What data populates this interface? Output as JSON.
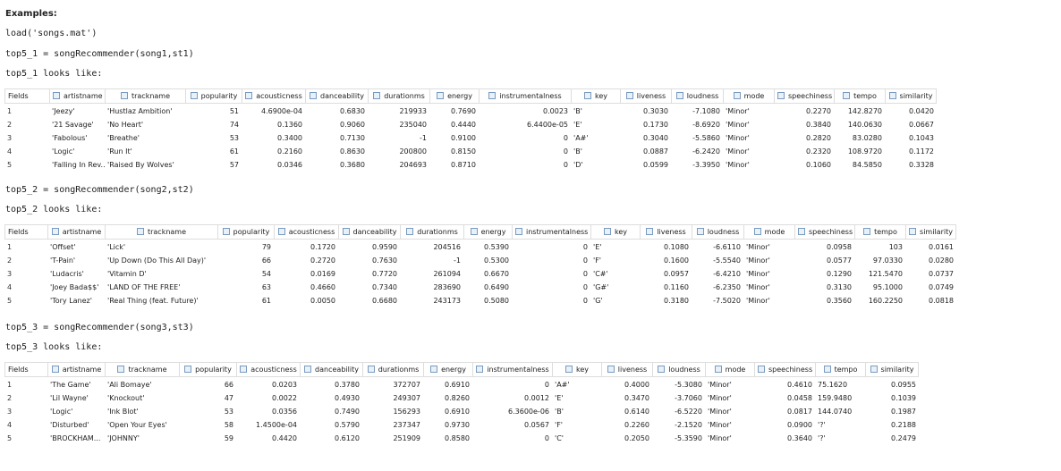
{
  "heading": "Examples:",
  "load_line": "load('songs.mat')",
  "blocks": [
    {
      "call": "top5_1 = songRecommender(song1,st1)",
      "caption": "top5_1 looks like:",
      "table": {
        "columns": [
          "Fields",
          "artistname",
          "trackname",
          "popularity",
          "acousticness",
          "danceability",
          "durationms",
          "energy",
          "instrumentalness",
          "key",
          "liveness",
          "loudness",
          "mode",
          "speechiness",
          "tempo",
          "similarity"
        ],
        "rows": [
          [
            "1",
            "'Jeezy'",
            "'Hustlaz Ambition'",
            "51",
            "4.6900e-04",
            "0.6830",
            "219933",
            "0.7690",
            "0.0023",
            "'B'",
            "0.3030",
            "-7.1080",
            "'Minor'",
            "0.2270",
            "142.8270",
            "0.0420"
          ],
          [
            "2",
            "'21 Savage'",
            "'No Heart'",
            "74",
            "0.1360",
            "0.9060",
            "235040",
            "0.4440",
            "6.4400e-05",
            "'E'",
            "0.1730",
            "-8.6920",
            "'Minor'",
            "0.3840",
            "140.0630",
            "0.0667"
          ],
          [
            "3",
            "'Fabolous'",
            "'Breathe'",
            "53",
            "0.3400",
            "0.7130",
            "-1",
            "0.9100",
            "0",
            "'A#'",
            "0.3040",
            "-5.5860",
            "'Minor'",
            "0.2820",
            "83.0280",
            "0.1043"
          ],
          [
            "4",
            "'Logic'",
            "'Run It'",
            "61",
            "0.2160",
            "0.8630",
            "200800",
            "0.8150",
            "0",
            "'B'",
            "0.0887",
            "-6.2420",
            "'Minor'",
            "0.2320",
            "108.9720",
            "0.1172"
          ],
          [
            "5",
            "'Falling In Rev...",
            "'Raised By Wolves'",
            "57",
            "0.0346",
            "0.3680",
            "204693",
            "0.8710",
            "0",
            "'D'",
            "0.0599",
            "-3.3950",
            "'Minor'",
            "0.1060",
            "84.5850",
            "0.3328"
          ]
        ]
      }
    },
    {
      "call": "top5_2 = songRecommender(song2,st2)",
      "caption": "top5_2 looks like:",
      "table": {
        "columns": [
          "Fields",
          "artistname",
          "trackname",
          "popularity",
          "acousticness",
          "danceability",
          "durationms",
          "energy",
          "instrumentalness",
          "key",
          "liveness",
          "loudness",
          "mode",
          "speechiness",
          "tempo",
          "similarity"
        ],
        "rows": [
          [
            "1",
            "'Offset'",
            "'Lick'",
            "79",
            "0.1720",
            "0.9590",
            "204516",
            "0.5390",
            "0",
            "'E'",
            "0.1080",
            "-6.6110",
            "'Minor'",
            "0.0958",
            "103",
            "0.0161"
          ],
          [
            "2",
            "'T-Pain'",
            "'Up Down (Do This All Day)'",
            "66",
            "0.2720",
            "0.7630",
            "-1",
            "0.5300",
            "0",
            "'F'",
            "0.1600",
            "-5.5540",
            "'Minor'",
            "0.0577",
            "97.0330",
            "0.0280"
          ],
          [
            "3",
            "'Ludacris'",
            "'Vitamin D'",
            "54",
            "0.0169",
            "0.7720",
            "261094",
            "0.6670",
            "0",
            "'C#'",
            "0.0957",
            "-6.4210",
            "'Minor'",
            "0.1290",
            "121.5470",
            "0.0737"
          ],
          [
            "4",
            "'Joey Bada$$'",
            "'LAND OF THE FREE'",
            "63",
            "0.4660",
            "0.7340",
            "283690",
            "0.6490",
            "0",
            "'G#'",
            "0.1160",
            "-6.2350",
            "'Minor'",
            "0.3130",
            "95.1000",
            "0.0749"
          ],
          [
            "5",
            "'Tory Lanez'",
            "'Real Thing (feat. Future)'",
            "61",
            "0.0050",
            "0.6680",
            "243173",
            "0.5080",
            "0",
            "'G'",
            "0.3180",
            "-7.5020",
            "'Minor'",
            "0.3560",
            "160.2250",
            "0.0818"
          ]
        ]
      }
    },
    {
      "call": "top5_3 = songRecommender(song3,st3)",
      "caption": "top5_3 looks like:",
      "table": {
        "columns": [
          "Fields",
          "artistname",
          "trackname",
          "popularity",
          "acousticness",
          "danceability",
          "durationms",
          "energy",
          "instrumentalness",
          "key",
          "liveness",
          "loudness",
          "mode",
          "speechiness",
          "tempo",
          "similarity"
        ],
        "rows": [
          [
            "1",
            "'The Game'",
            "'Ali Bomaye'",
            "66",
            "0.0203",
            "0.3780",
            "372707",
            "0.6910",
            "0",
            "'A#'",
            "0.4000",
            "-5.3080",
            "'Minor'",
            "0.4610",
            "75.1620",
            "0.0955"
          ],
          [
            "2",
            "'Lil Wayne'",
            "'Knockout'",
            "47",
            "0.0022",
            "0.4930",
            "249307",
            "0.8260",
            "0.0012",
            "'E'",
            "0.3470",
            "-3.7060",
            "'Minor'",
            "0.0458",
            "159.9480",
            "0.1039"
          ],
          [
            "3",
            "'Logic'",
            "'Ink Blot'",
            "53",
            "0.0356",
            "0.7490",
            "156293",
            "0.6910",
            "6.3600e-06",
            "'B'",
            "0.6140",
            "-6.5220",
            "'Minor'",
            "0.0817",
            "144.0740",
            "0.1987"
          ],
          [
            "4",
            "'Disturbed'",
            "'Open Your Eyes'",
            "58",
            "1.4500e-04",
            "0.5790",
            "237347",
            "0.9730",
            "0.0567",
            "'F'",
            "0.2260",
            "-2.1520",
            "'Minor'",
            "0.0900",
            "'?'",
            "0.2188"
          ],
          [
            "5",
            "'BROCKHAM...",
            "'JOHNNY'",
            "59",
            "0.4420",
            "0.6120",
            "251909",
            "0.8580",
            "0",
            "'C'",
            "0.2050",
            "-5.3590",
            "'Minor'",
            "0.3640",
            "'?'",
            "0.2479"
          ]
        ]
      }
    }
  ]
}
